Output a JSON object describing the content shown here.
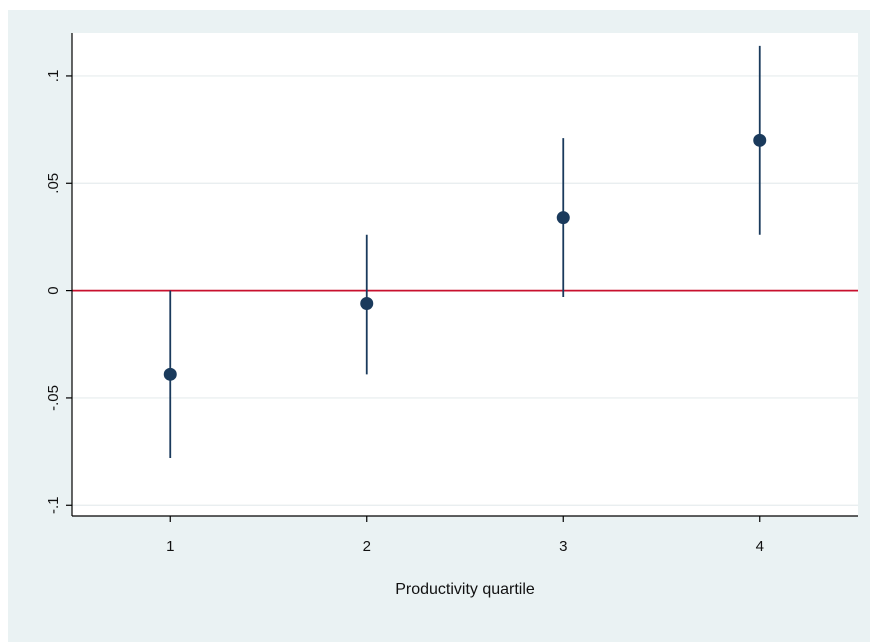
{
  "chart_data": {
    "type": "scatter",
    "title": "",
    "xlabel": "Productivity quartile",
    "ylabel": "",
    "x": [
      1,
      2,
      3,
      4
    ],
    "y": [
      -0.039,
      -0.006,
      0.034,
      0.07
    ],
    "ci_low": [
      -0.078,
      -0.039,
      -0.003,
      0.026
    ],
    "ci_high": [
      0.0,
      0.026,
      0.071,
      0.114
    ],
    "xlim": [
      0.5,
      4.5
    ],
    "ylim": [
      -0.105,
      0.12
    ],
    "x_ticks": [
      1,
      2,
      3,
      4
    ],
    "x_tick_labels": [
      "1",
      "2",
      "3",
      "4"
    ],
    "y_ticks": [
      -0.1,
      -0.05,
      0,
      0.05,
      0.1
    ],
    "y_tick_labels": [
      "-.1",
      "-.05",
      "0",
      ".05",
      ".1"
    ],
    "reference_line": {
      "y": 0,
      "color": "#c8102e"
    },
    "grid": true,
    "colors": {
      "background": "#eaf2f3",
      "plot_area": "#ffffff",
      "marker": "#1a3a5c",
      "error_bar": "#1a3a5c",
      "grid": "#e6ecee"
    }
  }
}
